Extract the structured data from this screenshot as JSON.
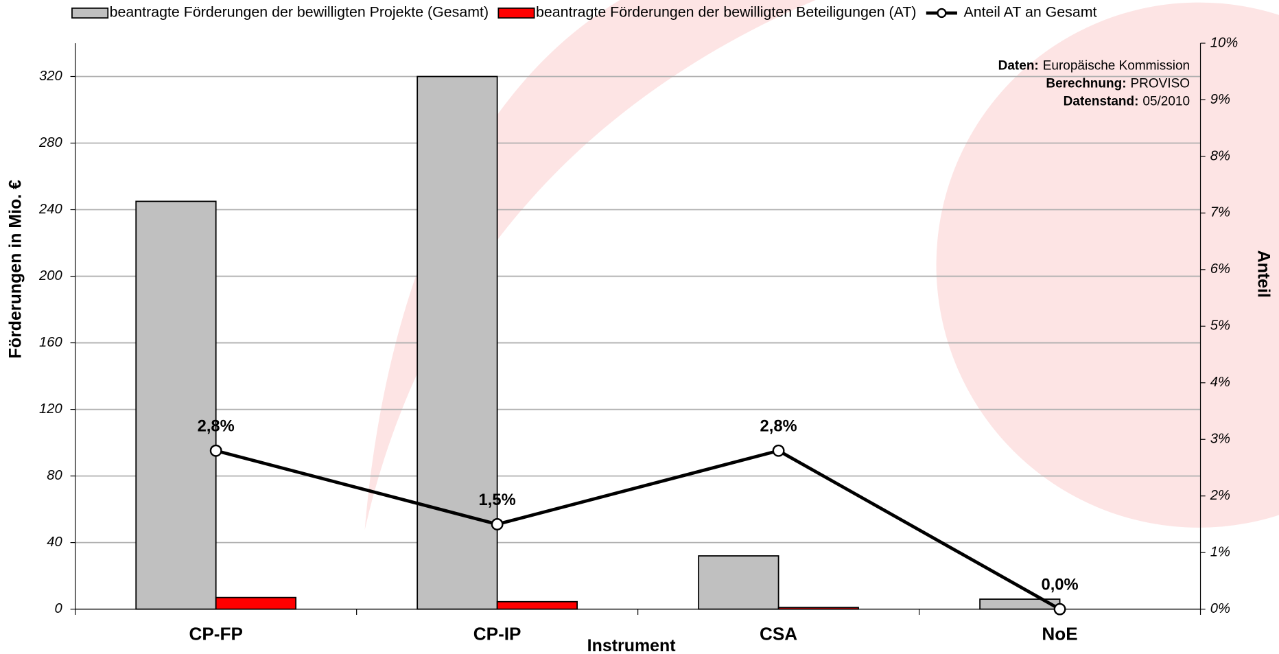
{
  "chart_data": {
    "type": "bar_line",
    "categories": [
      "CP-FP",
      "CP-IP",
      "CSA",
      "NoE"
    ],
    "series": [
      {
        "name": "beantragte Förderungen der bewilligten Projekte (Gesamt)",
        "color": "#c0c0c0",
        "values": [
          245,
          320,
          32,
          6
        ]
      },
      {
        "name": "beantragte Förderungen der bewilligten Beteiligungen (AT)",
        "color": "#ff0000",
        "values": [
          7,
          4.5,
          1,
          0
        ]
      },
      {
        "name": "Anteil AT an Gesamt",
        "color": "#000000",
        "axis": "y2",
        "values": [
          2.8,
          1.5,
          2.8,
          0.0
        ],
        "value_labels": [
          "2,8%",
          "1,5%",
          "2,8%",
          "0,0%"
        ]
      }
    ],
    "ylim": [
      0,
      340
    ],
    "yticks": [
      0,
      40,
      80,
      120,
      160,
      200,
      240,
      280,
      320
    ],
    "y2lim": [
      0,
      10
    ],
    "y2ticks": [
      {
        "value": 0,
        "label": "0%"
      },
      {
        "value": 1,
        "label": "1%"
      },
      {
        "value": 2,
        "label": "2%"
      },
      {
        "value": 3,
        "label": "3%"
      },
      {
        "value": 4,
        "label": "4%"
      },
      {
        "value": 5,
        "label": "5%"
      },
      {
        "value": 6,
        "label": "6%"
      },
      {
        "value": 7,
        "label": "7%"
      },
      {
        "value": 8,
        "label": "8%"
      },
      {
        "value": 9,
        "label": "9%"
      },
      {
        "value": 10,
        "label": "10%"
      }
    ],
    "ylabel": "Förderungen in Mio. €",
    "y2label": "Anteil",
    "xlabel": "Instrument",
    "grid": true,
    "source": [
      {
        "label": "Daten:",
        "text": "Europäische Kommission"
      },
      {
        "label": "Berechnung:",
        "text": "PROVISO"
      },
      {
        "label": "Datenstand:",
        "text": "05/2010"
      }
    ]
  }
}
